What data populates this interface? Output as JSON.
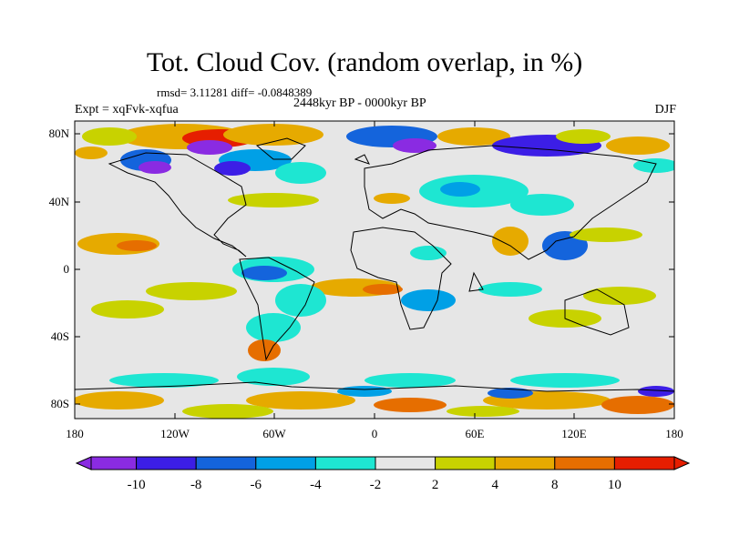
{
  "title": "Tot. Cloud Cov. (random overlap, in %)",
  "stats": "rmsd= 3.11281 diff= -0.0848389",
  "period": "2448kyr BP - 0000kyr BP",
  "experiment": "Expt = xqFvk-xqfua",
  "season": "DJF",
  "lat_labels": [
    "80N",
    "40N",
    "0",
    "40S",
    "80S"
  ],
  "lon_labels": [
    "180",
    "120W",
    "60W",
    "0",
    "60E",
    "120E",
    "180"
  ],
  "colorbar": {
    "labels": [
      "-10",
      "-8",
      "-6",
      "-4",
      "-2",
      "2",
      "4",
      "8",
      "10"
    ],
    "colors": [
      "#8a2be2",
      "#3c1ee6",
      "#1464dc",
      "#00a0e6",
      "#1ee6d2",
      "#e6e6e6",
      "#c8d200",
      "#e6aa00",
      "#e66e00",
      "#e61e00"
    ]
  }
}
